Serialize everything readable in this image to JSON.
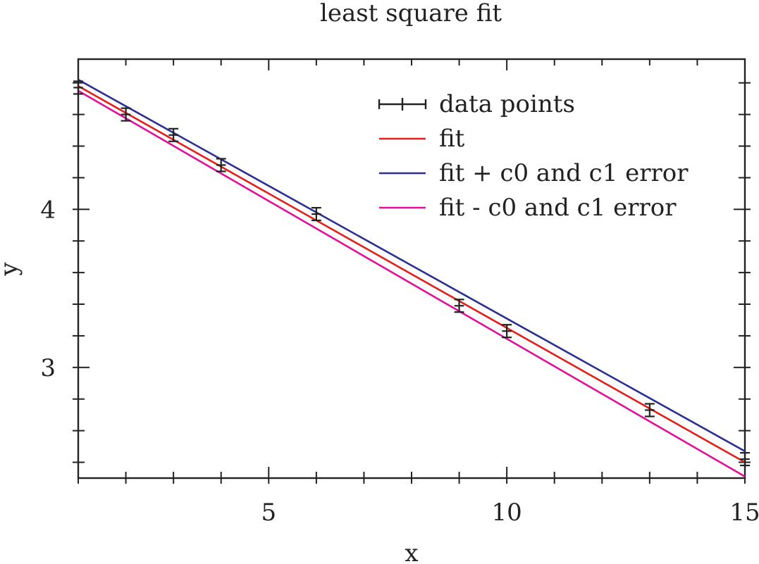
{
  "chart_data": {
    "type": "scatter",
    "title": "least square fit",
    "xlabel": "x",
    "ylabel": "y",
    "xlim": [
      1,
      15
    ],
    "ylim": [
      2.3,
      4.95
    ],
    "x_ticks": [
      5,
      10,
      15
    ],
    "y_ticks": [
      3,
      4
    ],
    "x_minor_step": 1,
    "y_minor_step": 0.2,
    "grid": false,
    "legend_position": "top-right",
    "series": [
      {
        "name": "data points",
        "kind": "errorbar",
        "color": "#222222",
        "x": [
          1,
          2,
          3,
          4,
          6,
          9,
          10,
          13,
          15
        ],
        "y": [
          4.77,
          4.6,
          4.47,
          4.28,
          3.97,
          3.39,
          3.23,
          2.73,
          2.42
        ],
        "yerr": [
          0.04,
          0.04,
          0.04,
          0.04,
          0.04,
          0.04,
          0.04,
          0.04,
          0.04
        ],
        "xerr": [
          0.1,
          0.1,
          0.1,
          0.1,
          0.1,
          0.1,
          0.1,
          0.1,
          0.1
        ]
      },
      {
        "name": "fit",
        "kind": "line",
        "color": "#e0201c",
        "x": [
          1,
          15
        ],
        "y": [
          4.78,
          2.4
        ]
      },
      {
        "name": "fit + c0 and c1 error",
        "kind": "line",
        "color": "#2b2f8f",
        "x": [
          1,
          15
        ],
        "y": [
          4.82,
          2.47
        ]
      },
      {
        "name": "fit - c0 and c1 error",
        "kind": "line",
        "color": "#e0109a",
        "x": [
          1,
          15
        ],
        "y": [
          4.75,
          2.31
        ]
      }
    ]
  }
}
